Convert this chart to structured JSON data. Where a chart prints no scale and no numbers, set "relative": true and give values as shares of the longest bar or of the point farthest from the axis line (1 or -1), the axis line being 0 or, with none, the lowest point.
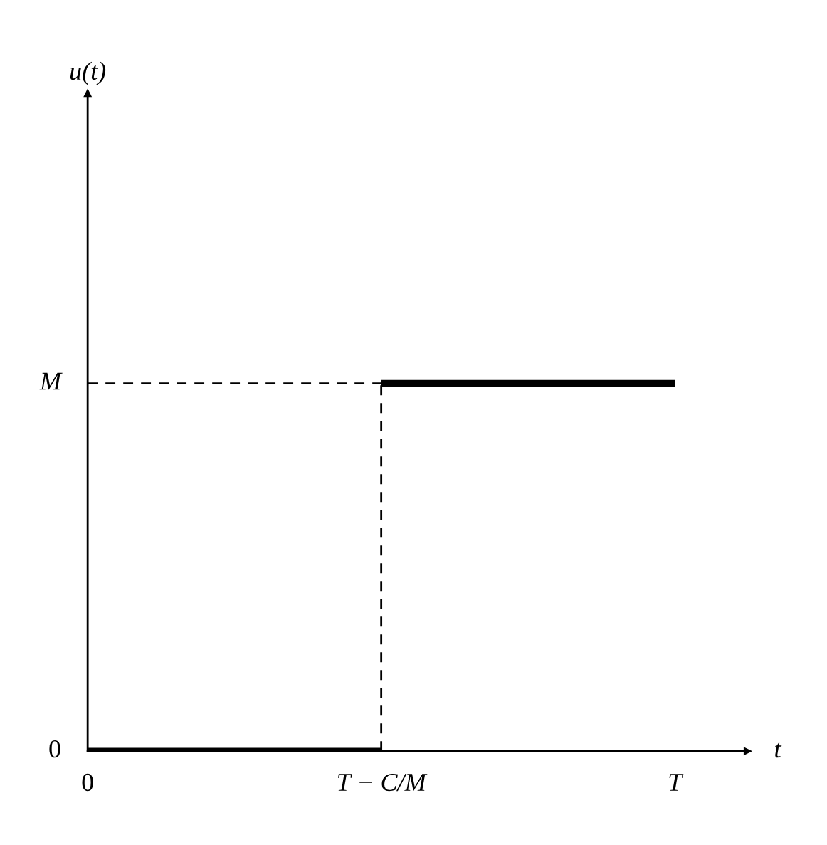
{
  "chart_data": {
    "type": "step",
    "xlabel": "t",
    "categories": [
      "0",
      "T − C/M",
      "T"
    ],
    "series": [
      {
        "color": "#000000",
        "values": [
          0,
          1,
          1
        ]
      }
    ],
    "relative": true,
    "annotations": [
      "u(t)",
      "0"
    ],
    "ref_lines": [
      {
        "axis": "y",
        "value": 1,
        "label": "M",
        "line_style": "dashed",
        "color": "#000000"
      },
      {
        "axis": "x",
        "value": "T − C/M",
        "line_style": "dashed",
        "color": "#000000"
      }
    ],
    "grid": false,
    "legend": false
  }
}
